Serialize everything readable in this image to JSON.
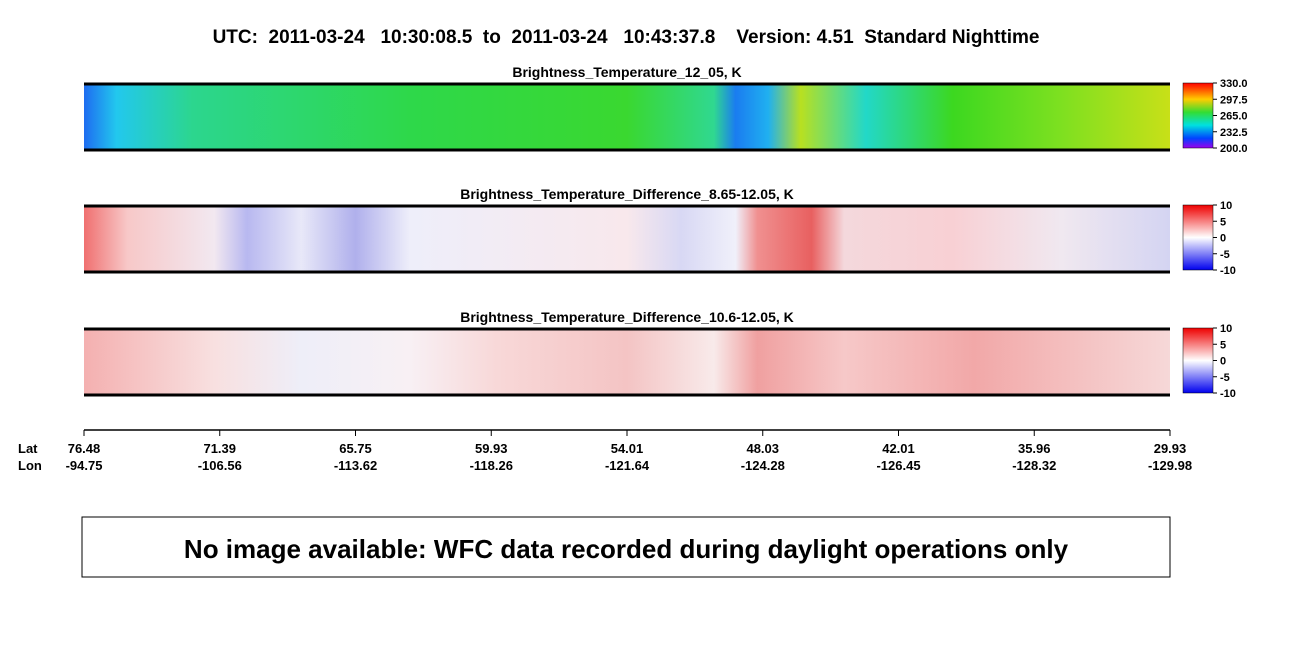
{
  "header": {
    "title": "UTC:  2011-03-24   10:30:08.5  to  2011-03-24   10:43:37.8    Version: 4.51  Standard Nighttime"
  },
  "panels": [
    {
      "title": "Brightness_Temperature_12_05, K",
      "colorbar_ticks": [
        "330.0",
        "297.5",
        "265.0",
        "232.5",
        "200.0"
      ]
    },
    {
      "title": "Brightness_Temperature_Difference_8.65-12.05, K",
      "colorbar_ticks": [
        "10",
        "5",
        "0",
        "-5",
        "-10"
      ]
    },
    {
      "title": "Brightness_Temperature_Difference_10.6-12.05, K",
      "colorbar_ticks": [
        "10",
        "5",
        "0",
        "-5",
        "-10"
      ]
    }
  ],
  "axis": {
    "lat_label": "Lat",
    "lon_label": "Lon",
    "lat": [
      "76.48",
      "71.39",
      "65.75",
      "59.93",
      "54.01",
      "48.03",
      "42.01",
      "35.96",
      "29.93"
    ],
    "lon": [
      "-94.75",
      "-106.56",
      "-113.62",
      "-118.26",
      "-121.64",
      "-124.28",
      "-126.45",
      "-128.32",
      "-129.98"
    ]
  },
  "message": "No image available: WFC data recorded during daylight operations only"
}
